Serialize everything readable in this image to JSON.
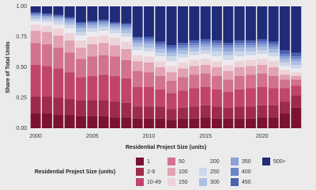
{
  "chart_data": {
    "type": "stacked-bar",
    "x_label": "Residential Project Size (units)",
    "y_label": "Share of Total Units",
    "legend_title": "Residential Project Size (units)",
    "legend": "bottom",
    "grid": true,
    "x": [
      2000,
      2001,
      2002,
      2003,
      2004,
      2005,
      2006,
      2007,
      2008,
      2009,
      2010,
      2011,
      2012,
      2013,
      2014,
      2015,
      2016,
      2017,
      2018,
      2019,
      2020,
      2021,
      2022,
      2023
    ],
    "xlim": [
      1999.5,
      2023.5
    ],
    "xticks": [
      2000,
      2005,
      2010,
      2015,
      2020
    ],
    "ylim": [
      0,
      1
    ],
    "yticks": [
      {
        "value": 0,
        "label": "0.00"
      },
      {
        "value": 0.25,
        "label": "0.25"
      },
      {
        "value": 0.5,
        "label": "0.50"
      },
      {
        "value": 0.75,
        "label": "0.75"
      },
      {
        "value": 1,
        "label": "1.00"
      }
    ],
    "series": [
      {
        "name": "1",
        "color": "#7b1232",
        "values": [
          0.12,
          0.12,
          0.11,
          0.11,
          0.1,
          0.1,
          0.1,
          0.09,
          0.09,
          0.08,
          0.08,
          0.08,
          0.07,
          0.08,
          0.08,
          0.09,
          0.08,
          0.08,
          0.08,
          0.08,
          0.09,
          0.09,
          0.12,
          0.17
        ]
      },
      {
        "name": "2-9",
        "color": "#9e2b4c",
        "values": [
          0.14,
          0.14,
          0.14,
          0.13,
          0.13,
          0.13,
          0.13,
          0.13,
          0.12,
          0.1,
          0.1,
          0.1,
          0.09,
          0.09,
          0.1,
          0.1,
          0.1,
          0.09,
          0.1,
          0.1,
          0.1,
          0.1,
          0.1,
          0.1
        ]
      },
      {
        "name": "10-49",
        "color": "#c1446b",
        "values": [
          0.26,
          0.25,
          0.24,
          0.22,
          0.19,
          0.2,
          0.21,
          0.21,
          0.2,
          0.16,
          0.16,
          0.14,
          0.13,
          0.14,
          0.15,
          0.15,
          0.14,
          0.13,
          0.14,
          0.15,
          0.15,
          0.14,
          0.11,
          0.08
        ]
      },
      {
        "name": "50",
        "color": "#d2728e",
        "values": [
          0.18,
          0.18,
          0.17,
          0.16,
          0.15,
          0.16,
          0.16,
          0.16,
          0.15,
          0.13,
          0.12,
          0.11,
          0.1,
          0.11,
          0.11,
          0.11,
          0.11,
          0.1,
          0.11,
          0.11,
          0.11,
          0.1,
          0.07,
          0.05
        ]
      },
      {
        "name": "100",
        "color": "#e2a2b3",
        "values": [
          0.1,
          0.1,
          0.1,
          0.1,
          0.09,
          0.1,
          0.1,
          0.09,
          0.09,
          0.08,
          0.08,
          0.07,
          0.07,
          0.07,
          0.07,
          0.07,
          0.07,
          0.07,
          0.07,
          0.07,
          0.07,
          0.07,
          0.04,
          0.03
        ]
      },
      {
        "name": "150",
        "color": "#eed2d9",
        "values": [
          0.05,
          0.05,
          0.06,
          0.06,
          0.06,
          0.06,
          0.06,
          0.06,
          0.06,
          0.05,
          0.05,
          0.05,
          0.05,
          0.05,
          0.05,
          0.05,
          0.05,
          0.05,
          0.05,
          0.05,
          0.05,
          0.05,
          0.04,
          0.03
        ]
      },
      {
        "name": "200",
        "color": "#ececf0",
        "values": [
          0.03,
          0.03,
          0.03,
          0.04,
          0.04,
          0.04,
          0.04,
          0.04,
          0.04,
          0.04,
          0.04,
          0.04,
          0.04,
          0.04,
          0.04,
          0.04,
          0.04,
          0.04,
          0.04,
          0.04,
          0.04,
          0.04,
          0.03,
          0.03
        ]
      },
      {
        "name": "250",
        "color": "#cdd7ea",
        "values": [
          0.02,
          0.02,
          0.03,
          0.03,
          0.03,
          0.03,
          0.03,
          0.03,
          0.03,
          0.03,
          0.03,
          0.03,
          0.04,
          0.03,
          0.03,
          0.03,
          0.04,
          0.04,
          0.04,
          0.03,
          0.03,
          0.03,
          0.03,
          0.03
        ]
      },
      {
        "name": "300",
        "color": "#abbfe2",
        "values": [
          0.02,
          0.02,
          0.02,
          0.02,
          0.03,
          0.02,
          0.02,
          0.02,
          0.03,
          0.03,
          0.03,
          0.03,
          0.03,
          0.03,
          0.03,
          0.03,
          0.03,
          0.03,
          0.03,
          0.03,
          0.03,
          0.03,
          0.03,
          0.03
        ]
      },
      {
        "name": "350",
        "color": "#8ca2d7",
        "values": [
          0.01,
          0.01,
          0.01,
          0.02,
          0.02,
          0.02,
          0.02,
          0.02,
          0.02,
          0.02,
          0.02,
          0.02,
          0.02,
          0.02,
          0.02,
          0.02,
          0.02,
          0.03,
          0.02,
          0.02,
          0.02,
          0.02,
          0.02,
          0.02
        ]
      },
      {
        "name": "400",
        "color": "#6b83c9",
        "values": [
          0.01,
          0.01,
          0.01,
          0.01,
          0.02,
          0.01,
          0.01,
          0.01,
          0.02,
          0.02,
          0.02,
          0.02,
          0.02,
          0.02,
          0.02,
          0.02,
          0.02,
          0.02,
          0.02,
          0.02,
          0.02,
          0.02,
          0.02,
          0.02
        ]
      },
      {
        "name": "450",
        "color": "#4a60b2",
        "values": [
          0.01,
          0.01,
          0.01,
          0.01,
          0.01,
          0.01,
          0.01,
          0.01,
          0.01,
          0.01,
          0.02,
          0.02,
          0.02,
          0.02,
          0.02,
          0.02,
          0.02,
          0.02,
          0.02,
          0.02,
          0.02,
          0.02,
          0.03,
          0.03
        ]
      },
      {
        "name": "500+",
        "color": "#202b7a",
        "values": [
          0.05,
          0.06,
          0.07,
          0.09,
          0.13,
          0.12,
          0.11,
          0.13,
          0.14,
          0.25,
          0.25,
          0.29,
          0.32,
          0.3,
          0.28,
          0.27,
          0.28,
          0.3,
          0.28,
          0.28,
          0.27,
          0.29,
          0.36,
          0.38
        ]
      }
    ]
  }
}
